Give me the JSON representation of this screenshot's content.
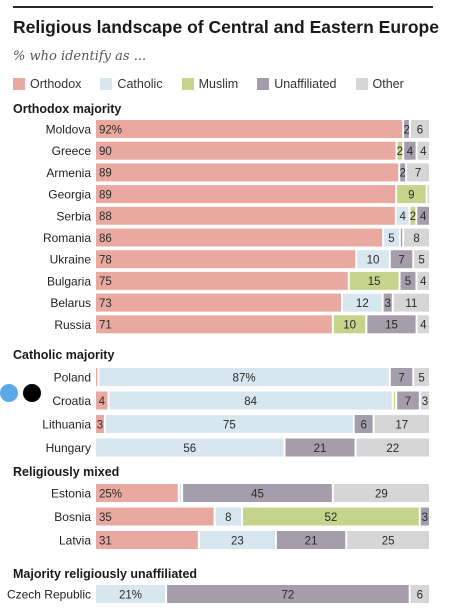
{
  "title": "Religious landscape of Central and Eastern Europe",
  "subtitle": "% who identify as ...",
  "colors": {
    "Orthodox": "#eaa9a0",
    "Catholic": "#d7e6ef",
    "Muslim": "#c6d48b",
    "Unaffiliated": "#a49eac",
    "Other": "#d6d6d6"
  },
  "legend": [
    "Orthodox",
    "Catholic",
    "Muslim",
    "Unaffiliated",
    "Other"
  ],
  "chart_data": {
    "type": "bar",
    "orientation": "horizontal",
    "stacked": true,
    "series_order": [
      "Orthodox",
      "Catholic",
      "Muslim",
      "Unaffiliated",
      "Other"
    ],
    "groups": [
      {
        "label": "Orthodox majority",
        "rows": [
          {
            "country": "Moldova",
            "values": [
              92,
              0,
              0,
              2,
              6
            ],
            "labels": [
              "92%",
              "",
              "",
              "2",
              "6"
            ]
          },
          {
            "country": "Greece",
            "values": [
              90,
              0,
              2,
              4,
              4
            ],
            "labels": [
              "90",
              "",
              "2",
              "4",
              "4"
            ]
          },
          {
            "country": "Armenia",
            "values": [
              89,
              0,
              0,
              2,
              7
            ],
            "labels": [
              "89",
              "",
              "",
              "2",
              "7"
            ]
          },
          {
            "country": "Georgia",
            "values": [
              89,
              0,
              9,
              0,
              1
            ],
            "labels": [
              "89",
              "",
              "9",
              "",
              ""
            ]
          },
          {
            "country": "Serbia",
            "values": [
              88,
              4,
              2,
              4,
              0
            ],
            "labels": [
              "88",
              "4",
              "2",
              "4",
              ""
            ]
          },
          {
            "country": "Romania",
            "values": [
              86,
              5,
              0,
              1,
              8
            ],
            "labels": [
              "86",
              "5",
              "",
              "",
              "8"
            ]
          },
          {
            "country": "Ukraine",
            "values": [
              78,
              10,
              0,
              7,
              5
            ],
            "labels": [
              "78",
              "10",
              "",
              "7",
              "5"
            ]
          },
          {
            "country": "Bulgaria",
            "values": [
              75,
              0,
              15,
              5,
              4
            ],
            "labels": [
              "75",
              "",
              "15",
              "5",
              "4"
            ]
          },
          {
            "country": "Belarus",
            "values": [
              73,
              12,
              0,
              3,
              11
            ],
            "labels": [
              "73",
              "12",
              "",
              "3",
              "11"
            ]
          },
          {
            "country": "Russia",
            "values": [
              71,
              0,
              10,
              15,
              4
            ],
            "labels": [
              "71",
              "",
              "10",
              "15",
              "4"
            ]
          }
        ]
      },
      {
        "label": "Catholic majority",
        "rows": [
          {
            "country": "Poland",
            "values": [
              1,
              87,
              0,
              7,
              5
            ],
            "labels": [
              "",
              "87%",
              "",
              "7",
              "5"
            ]
          },
          {
            "country": "Croatia",
            "values": [
              4,
              84,
              1,
              7,
              3
            ],
            "labels": [
              "4",
              "84",
              "",
              "7",
              "3"
            ]
          },
          {
            "country": "Lithuania",
            "values": [
              3,
              75,
              0,
              6,
              17
            ],
            "labels": [
              "3",
              "75",
              "",
              "6",
              "17"
            ]
          },
          {
            "country": "Hungary",
            "values": [
              0,
              56,
              0,
              21,
              22
            ],
            "labels": [
              "",
              "56",
              "",
              "21",
              "22"
            ]
          }
        ]
      },
      {
        "label": "Religiously mixed",
        "rows": [
          {
            "country": "Estonia",
            "values": [
              25,
              1,
              0,
              45,
              29
            ],
            "labels": [
              "25%",
              "",
              "",
              "45",
              "29"
            ]
          },
          {
            "country": "Bosnia",
            "values": [
              35,
              8,
              52,
              3,
              0
            ],
            "labels": [
              "35",
              "8",
              "52",
              "3",
              ""
            ]
          },
          {
            "country": "Latvia",
            "values": [
              31,
              23,
              0,
              21,
              25
            ],
            "labels": [
              "31",
              "23",
              "",
              "21",
              "25"
            ]
          }
        ]
      },
      {
        "label": "Majority religiously unaffiliated",
        "rows": [
          {
            "country": "Czech Republic",
            "values": [
              0,
              21,
              0,
              72,
              6
            ],
            "labels": [
              "",
              "21%",
              "",
              "72",
              "6"
            ]
          }
        ]
      }
    ]
  }
}
